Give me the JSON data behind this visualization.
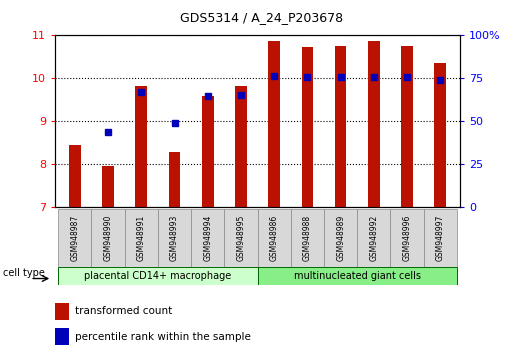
{
  "title": "GDS5314 / A_24_P203678",
  "samples": [
    "GSM948987",
    "GSM948990",
    "GSM948991",
    "GSM948993",
    "GSM948994",
    "GSM948995",
    "GSM948986",
    "GSM948988",
    "GSM948989",
    "GSM948992",
    "GSM948996",
    "GSM948997"
  ],
  "transformed_count": [
    8.45,
    7.95,
    9.82,
    8.28,
    9.58,
    9.82,
    10.88,
    10.72,
    10.75,
    10.88,
    10.75,
    10.35
  ],
  "percentile_y": [
    null,
    8.75,
    9.68,
    8.95,
    9.58,
    9.6,
    10.05,
    10.04,
    10.04,
    10.04,
    10.04,
    9.95
  ],
  "group1_count": 6,
  "group1_label": "placental CD14+ macrophage",
  "group2_label": "multinucleated giant cells",
  "group1_color": "#ccffcc",
  "group2_color": "#88ee88",
  "bar_color": "#bb1100",
  "dot_color": "#0000bb",
  "ylim_left": [
    7,
    11
  ],
  "ylim_right": [
    0,
    100
  ],
  "yticks_left": [
    7,
    8,
    9,
    10,
    11
  ],
  "yticks_right": [
    0,
    25,
    50,
    75,
    100
  ],
  "right_tick_labels": [
    "0",
    "25",
    "50",
    "75",
    "100%"
  ],
  "bar_width": 0.35,
  "baseline": 7,
  "background_color": "#ffffff"
}
